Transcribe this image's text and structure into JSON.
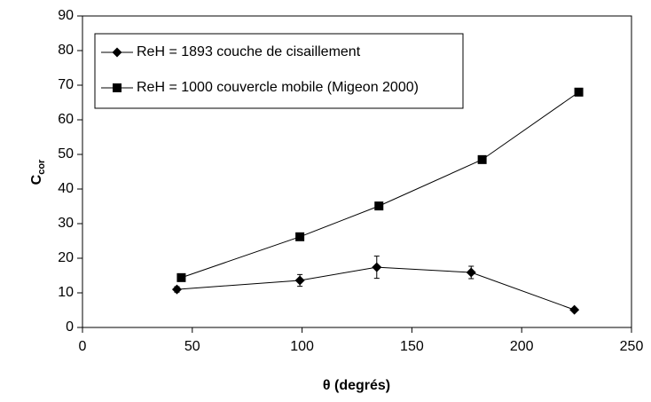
{
  "chart_data": {
    "type": "line",
    "xlabel": "θ (degrés)",
    "ylabel": "C",
    "ylabel_sub": "cor",
    "xlim": [
      0,
      250
    ],
    "xticks": [
      0,
      50,
      100,
      150,
      200,
      250
    ],
    "ylim": [
      0,
      90
    ],
    "yticks": [
      0,
      10,
      20,
      30,
      40,
      50,
      60,
      70,
      80,
      90
    ],
    "legend": "upper-left",
    "series": [
      {
        "name": "ReH = 1893 couche de cisaillement",
        "color": "#000000",
        "marker": "diamond",
        "x": [
          43,
          99,
          134,
          177,
          224
        ],
        "values": [
          11.0,
          13.6,
          17.4,
          15.9,
          5.1
        ],
        "errors": [
          0.8,
          1.7,
          3.2,
          1.8,
          0.5
        ]
      },
      {
        "name": "ReH = 1000 couvercle mobile (Migeon 2000)",
        "color": "#000000",
        "marker": "square",
        "x": [
          45,
          99,
          135,
          182,
          226
        ],
        "values": [
          14.4,
          26.2,
          35.1,
          48.5,
          68.0
        ]
      }
    ]
  }
}
